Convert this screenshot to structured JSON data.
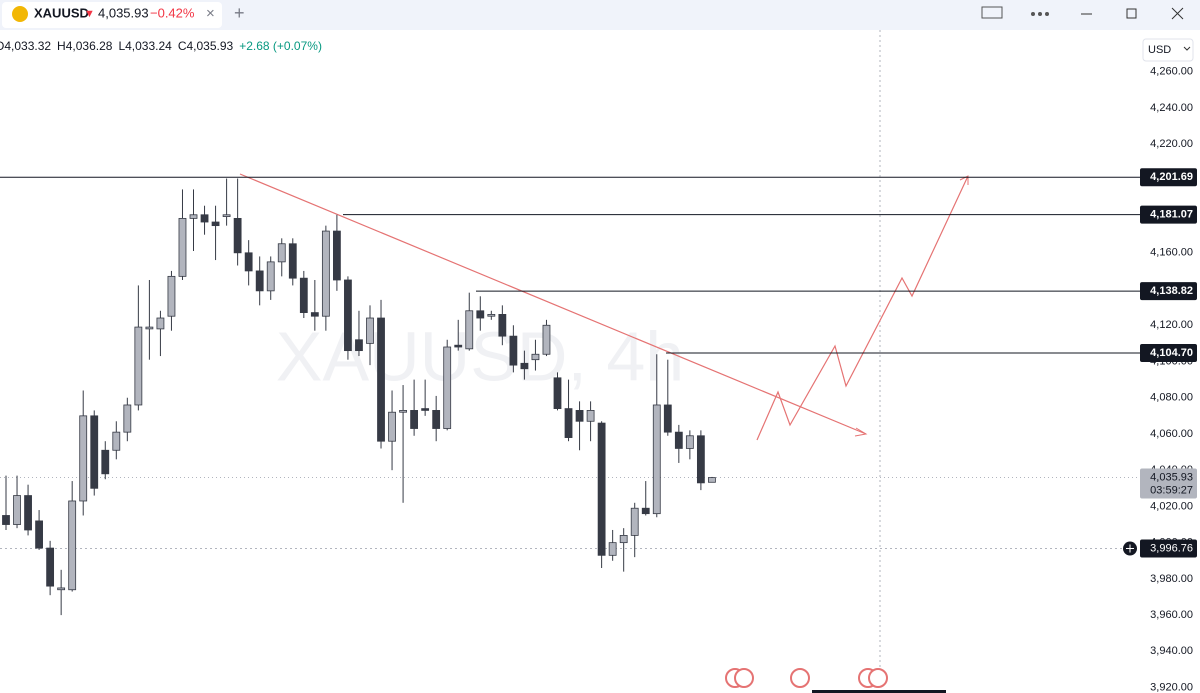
{
  "header": {
    "symbol": "XAUUSD",
    "arrow": "▼",
    "price": "4,035.93",
    "change": "−0.42%",
    "close_tab": "×",
    "add_tab": "+"
  },
  "legend": [
    "O4,033.32",
    "H4,036.28",
    "L4,033.24",
    "C4,035.93",
    "+2.68 (+0.07%)"
  ],
  "currency": "USD",
  "watermark": "XAUUSD, 4h",
  "chart_data": {
    "type": "candlestick",
    "open": [
      4015,
      4010,
      4026,
      4012,
      3997,
      3974,
      3974,
      4023,
      4070,
      4051,
      4051,
      4061,
      4076,
      4118,
      4118,
      4125,
      4147,
      4179,
      4181,
      4177,
      4180,
      4179,
      4160,
      4150,
      4139,
      4155,
      4165,
      4146,
      4127,
      4125,
      4172,
      4145,
      4112,
      4110,
      4124,
      4056,
      4072,
      4073,
      4074,
      4073,
      4063,
      4109,
      4107,
      4128,
      4125,
      4126,
      4114,
      4099,
      4101,
      4104,
      4091,
      4074,
      4073,
      4067,
      4066,
      3993,
      4000,
      4004,
      4019,
      4016,
      4076,
      4061,
      4052,
      4059,
      4033.32
    ],
    "high": [
      4037,
      4037,
      4032,
      4018,
      4001,
      3985,
      4034,
      4084,
      4073,
      4056,
      4067,
      4080,
      4142,
      4145,
      4128,
      4150,
      4195,
      4195,
      4186,
      4186,
      4201,
      4201,
      4167,
      4158,
      4158,
      4168,
      4168,
      4150,
      4145,
      4175,
      4181,
      4147,
      4128,
      4131,
      4134,
      4084,
      4087,
      4090,
      4090,
      4081,
      4112,
      4123,
      4138,
      4136,
      4128,
      4131,
      4120,
      4106,
      4112,
      4123,
      4094,
      4090,
      4078,
      4078,
      4067,
      4007,
      4008,
      4022,
      4034,
      4104,
      4101,
      4065,
      4062,
      4062,
      4036.28
    ],
    "low": [
      4007,
      4008,
      4004,
      3996,
      3971,
      3960,
      3973,
      4015,
      4026,
      4035,
      4046,
      4056,
      4073,
      4101,
      4103,
      4117,
      4145,
      4161,
      4170,
      4156,
      4175,
      4153,
      4142,
      4131,
      4134,
      4147,
      4142,
      4124,
      4117,
      4117,
      4139,
      4101,
      4103,
      4098,
      4052,
      4040,
      4022,
      4059,
      4070,
      4056,
      4062,
      4106,
      4106,
      4117,
      4123,
      4109,
      4094,
      4090,
      4095,
      4103,
      4073,
      4056,
      4051,
      4056,
      3986,
      3990,
      3984,
      3992,
      4015,
      4014,
      4059,
      4044,
      4046,
      4029,
      4033.24
    ],
    "close": [
      4010,
      4026,
      4007,
      3997,
      3976,
      3975,
      4023,
      4070,
      4030,
      4038,
      4061,
      4076,
      4119,
      4119,
      4124,
      4147,
      4179,
      4181,
      4177,
      4175,
      4181,
      4160,
      4150,
      4139,
      4155,
      4165,
      4146,
      4127,
      4125,
      4172,
      4145,
      4106,
      4106,
      4124,
      4056,
      4072,
      4073,
      4063,
      4073,
      4063,
      4108,
      4108,
      4128,
      4124,
      4126,
      4114,
      4098,
      4096,
      4104,
      4120,
      4074,
      4058,
      4067,
      4073,
      3993,
      4000,
      4004,
      4019,
      4016,
      4076,
      4061,
      4052,
      4059,
      4033,
      4035.93
    ],
    "ylim": [
      3917,
      4283
    ],
    "yticks": [
      {
        "value": 3920,
        "label": "3,920.00"
      },
      {
        "value": 3940,
        "label": "3,940.00"
      },
      {
        "value": 3960,
        "label": "3,960.00"
      },
      {
        "value": 3980,
        "label": "3,980.00"
      },
      {
        "value": 4000,
        "label": "4,000.00"
      },
      {
        "value": 4020,
        "label": "4,020.00"
      },
      {
        "value": 4040,
        "label": "4,040.00"
      },
      {
        "value": 4060,
        "label": "4,060.00"
      },
      {
        "value": 4080,
        "label": "4,080.00"
      },
      {
        "value": 4100,
        "label": "4,100.00"
      },
      {
        "value": 4120,
        "label": "4,120.00"
      },
      {
        "value": 4140,
        "label": "4,140.00"
      },
      {
        "value": 4160,
        "label": "4,160.00"
      },
      {
        "value": 4180,
        "label": "4,180.00"
      },
      {
        "value": 4200,
        "label": "4,200.00"
      },
      {
        "value": 4220,
        "label": "4,220.00"
      },
      {
        "value": 4240,
        "label": "4,240.00"
      },
      {
        "value": 4260,
        "label": "4,260.00"
      }
    ],
    "levels": [
      {
        "value": 4201.69,
        "label": "4,201.69"
      },
      {
        "value": 4181.07,
        "label": "4,181.07"
      },
      {
        "value": 4138.82,
        "label": "4,138.82"
      },
      {
        "value": 4104.7,
        "label": "4,104.70"
      }
    ],
    "last_price": {
      "value": 4035.93,
      "label": "4,035.93"
    },
    "countdown": "03:59:27",
    "crosshair": {
      "value": 3996.76,
      "label": "3,996.76"
    },
    "bull_color": "#b2b5be",
    "bear_color": "#363a45",
    "level_color": "#131722"
  }
}
